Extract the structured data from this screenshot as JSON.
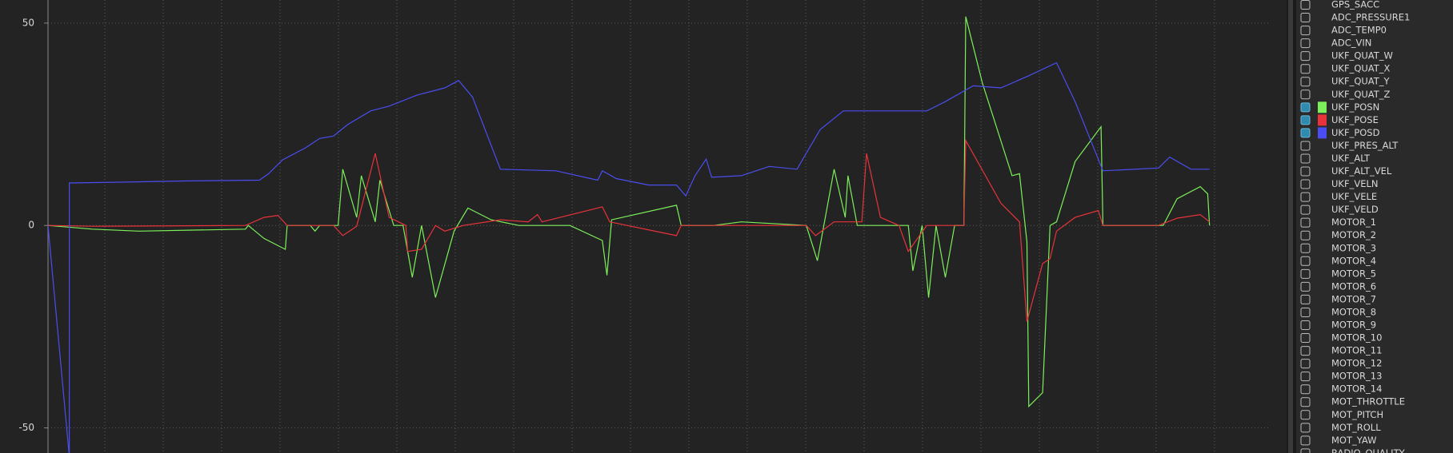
{
  "chart_data": {
    "type": "line",
    "ylim": [
      -56.2,
      55.7
    ],
    "yticks": [
      -50,
      0,
      50
    ],
    "xlim": [
      0,
      1318
    ],
    "grid": true,
    "series": [
      {
        "name": "UKF_POSN",
        "color": "#7cf05a",
        "x": [
          0,
          48,
          98,
          213,
          216,
          233,
          256,
          258,
          283,
          288,
          293,
          313,
          318,
          333,
          338,
          353,
          358,
          373,
          383,
          393,
          403,
          418,
          438,
          453,
          478,
          508,
          563,
          598,
          603,
          608,
          678,
          683,
          718,
          748,
          818,
          830,
          848,
          860,
          863,
          873,
          928,
          933,
          943,
          950,
          958,
          968,
          978,
          988,
          990,
          1008,
          1040,
          1048,
          1056,
          1058,
          1073,
          1081,
          1088,
          1108,
          1136,
          1138,
          1203,
          1218,
          1243,
          1251,
          1253
        ],
        "values": [
          0,
          -0.9,
          -1.4,
          -0.9,
          0,
          -3.2,
          -5.9,
          0,
          0,
          -1.4,
          0,
          0,
          13.9,
          2,
          12.3,
          0.9,
          11.2,
          0,
          0,
          -12.8,
          0,
          -17.8,
          -1.4,
          4.3,
          1.4,
          0,
          0,
          -3.7,
          -12.3,
          1.4,
          5,
          0,
          0,
          0.9,
          0,
          -8.7,
          13.9,
          2,
          12.3,
          0,
          0,
          -11.2,
          0,
          -17.8,
          0,
          -12.8,
          0,
          0,
          51.6,
          35.2,
          12.3,
          12.8,
          -4.1,
          -44.7,
          -41.3,
          0,
          0.9,
          15.8,
          24.4,
          0,
          0,
          6.6,
          9.6,
          7.8,
          0
        ]
      },
      {
        "name": "UKF_POSE",
        "color": "#e8333a",
        "x": [
          0,
          48,
          213,
          233,
          248,
          258,
          308,
          318,
          333,
          353,
          368,
          386,
          388,
          403,
          418,
          428,
          448,
          488,
          518,
          528,
          533,
          598,
          606,
          678,
          683,
          818,
          828,
          848,
          878,
          883,
          898,
          918,
          928,
          948,
          988,
          990,
          1028,
          1048,
          1056,
          1073,
          1081,
          1088,
          1108,
          1133,
          1138,
          1198,
          1218,
          1243,
          1253
        ],
        "values": [
          0,
          -0.2,
          0,
          2,
          2.5,
          0,
          0,
          -2.5,
          -0.2,
          17.8,
          2,
          0,
          -6.4,
          -5.9,
          0,
          -1.4,
          0,
          1.4,
          0.9,
          2.7,
          0.9,
          4.6,
          0.9,
          -2.5,
          0,
          0,
          -2.5,
          0.9,
          0.9,
          17.8,
          2,
          0,
          -6.4,
          0,
          0,
          21,
          5.5,
          0.9,
          -23.7,
          -9.4,
          -8.2,
          -1.4,
          2,
          3.7,
          0,
          0,
          1.8,
          2.7,
          0.9
        ]
      },
      {
        "name": "UKF_POSD",
        "color": "#4a4ef2",
        "x": [
          0,
          23,
          23,
          78,
          148,
          228,
          238,
          253,
          278,
          293,
          308,
          323,
          348,
          368,
          398,
          428,
          443,
          458,
          488,
          548,
          593,
          598,
          613,
          648,
          678,
          688,
          698,
          710,
          716,
          748,
          778,
          808,
          833,
          858,
          898,
          948,
          968,
          998,
          1028,
          1058,
          1088,
          1108,
          1138,
          1198,
          1210,
          1233,
          1253
        ],
        "values": [
          0,
          -57,
          10.5,
          10.7,
          11,
          11.2,
          12.8,
          16.2,
          19.2,
          21.5,
          22.1,
          24.9,
          28.3,
          29.5,
          32.2,
          34,
          35.8,
          31.7,
          13.9,
          13.5,
          11.2,
          13.5,
          11.6,
          10,
          10,
          7.3,
          12.3,
          16.4,
          11.9,
          12.3,
          14.6,
          13.9,
          23.7,
          28.3,
          28.3,
          28.3,
          30.6,
          34.5,
          34,
          37,
          40.2,
          30.6,
          13.5,
          14.2,
          16.9,
          13.9,
          13.9
        ]
      }
    ]
  },
  "channels": [
    {
      "label": "GPS_SACC",
      "checked": false
    },
    {
      "label": "ADC_PRESSURE1",
      "checked": false
    },
    {
      "label": "ADC_TEMP0",
      "checked": false
    },
    {
      "label": "ADC_VIN",
      "checked": false
    },
    {
      "label": "UKF_QUAT_W",
      "checked": false
    },
    {
      "label": "UKF_QUAT_X",
      "checked": false
    },
    {
      "label": "UKF_QUAT_Y",
      "checked": false
    },
    {
      "label": "UKF_QUAT_Z",
      "checked": false
    },
    {
      "label": "UKF_POSN",
      "checked": true
    },
    {
      "label": "UKF_POSE",
      "checked": true
    },
    {
      "label": "UKF_POSD",
      "checked": true
    },
    {
      "label": "UKF_PRES_ALT",
      "checked": false
    },
    {
      "label": "UKF_ALT",
      "checked": false
    },
    {
      "label": "UKF_ALT_VEL",
      "checked": false
    },
    {
      "label": "UKF_VELN",
      "checked": false
    },
    {
      "label": "UKF_VELE",
      "checked": false
    },
    {
      "label": "UKF_VELD",
      "checked": false
    },
    {
      "label": "MOTOR_1",
      "checked": false
    },
    {
      "label": "MOTOR_2",
      "checked": false
    },
    {
      "label": "MOTOR_3",
      "checked": false
    },
    {
      "label": "MOTOR_4",
      "checked": false
    },
    {
      "label": "MOTOR_5",
      "checked": false
    },
    {
      "label": "MOTOR_6",
      "checked": false
    },
    {
      "label": "MOTOR_7",
      "checked": false
    },
    {
      "label": "MOTOR_8",
      "checked": false
    },
    {
      "label": "MOTOR_9",
      "checked": false
    },
    {
      "label": "MOTOR_10",
      "checked": false
    },
    {
      "label": "MOTOR_11",
      "checked": false
    },
    {
      "label": "MOTOR_12",
      "checked": false
    },
    {
      "label": "MOTOR_13",
      "checked": false
    },
    {
      "label": "MOTOR_14",
      "checked": false
    },
    {
      "label": "MOT_THROTTLE",
      "checked": false
    },
    {
      "label": "MOT_PITCH",
      "checked": false
    },
    {
      "label": "MOT_ROLL",
      "checked": false
    },
    {
      "label": "MOT_YAW",
      "checked": false
    },
    {
      "label": "RADIO_QUALITY",
      "checked": false
    }
  ]
}
